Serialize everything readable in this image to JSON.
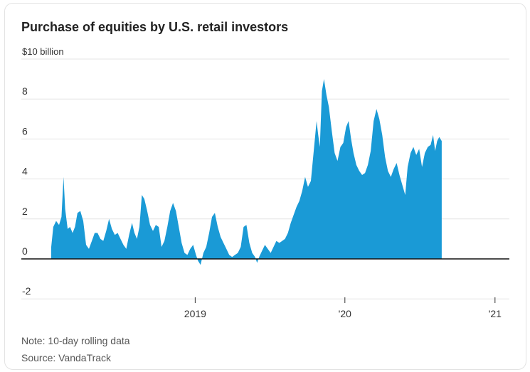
{
  "title": "Purchase of equities by U.S. retail investors",
  "note": "Note: 10-day rolling data",
  "source": "Source: VandaTrack",
  "colors": {
    "area": "#1a9ad6",
    "grid": "#e4e4e4",
    "zero_line": "#111111",
    "text": "#333333"
  },
  "chart_data": {
    "type": "area",
    "title": "Purchase of equities by U.S. retail investors",
    "unit_label": "$10 billion",
    "ylim": [
      -2,
      10
    ],
    "y_ticks": [
      {
        "value": 10,
        "label": "$10 billion"
      },
      {
        "value": 8,
        "label": "8"
      },
      {
        "value": 6,
        "label": "6"
      },
      {
        "value": 4,
        "label": "4"
      },
      {
        "value": 2,
        "label": "2"
      },
      {
        "value": 0,
        "label": "0"
      },
      {
        "value": -2,
        "label": "-2"
      }
    ],
    "xlim": [
      "2018-01-15",
      "2021-02-05"
    ],
    "x_ticks": [
      {
        "value": "2019-01-01",
        "label": "2019"
      },
      {
        "value": "2020-01-01",
        "label": "'20"
      },
      {
        "value": "2021-01-01",
        "label": "'21"
      }
    ],
    "grid": true,
    "points": [
      [
        "2018-01-15",
        0.6
      ],
      [
        "2018-01-20",
        1.6
      ],
      [
        "2018-01-27",
        1.9
      ],
      [
        "2018-02-03",
        1.7
      ],
      [
        "2018-02-09",
        2.1
      ],
      [
        "2018-02-14",
        4.1
      ],
      [
        "2018-02-18",
        2.5
      ],
      [
        "2018-02-24",
        1.5
      ],
      [
        "2018-03-02",
        1.6
      ],
      [
        "2018-03-08",
        1.3
      ],
      [
        "2018-03-14",
        1.6
      ],
      [
        "2018-03-20",
        2.3
      ],
      [
        "2018-03-27",
        2.4
      ],
      [
        "2018-04-03",
        1.9
      ],
      [
        "2018-04-10",
        0.7
      ],
      [
        "2018-04-17",
        0.5
      ],
      [
        "2018-04-24",
        0.9
      ],
      [
        "2018-05-01",
        1.3
      ],
      [
        "2018-05-08",
        1.3
      ],
      [
        "2018-05-15",
        1.0
      ],
      [
        "2018-05-22",
        0.9
      ],
      [
        "2018-05-29",
        1.4
      ],
      [
        "2018-06-05",
        2.0
      ],
      [
        "2018-06-12",
        1.5
      ],
      [
        "2018-06-19",
        1.2
      ],
      [
        "2018-06-26",
        1.3
      ],
      [
        "2018-07-03",
        1.0
      ],
      [
        "2018-07-10",
        0.7
      ],
      [
        "2018-07-17",
        0.5
      ],
      [
        "2018-07-24",
        1.2
      ],
      [
        "2018-07-31",
        1.8
      ],
      [
        "2018-08-06",
        1.3
      ],
      [
        "2018-08-12",
        1.0
      ],
      [
        "2018-08-18",
        1.6
      ],
      [
        "2018-08-24",
        3.2
      ],
      [
        "2018-08-30",
        3.0
      ],
      [
        "2018-09-06",
        2.4
      ],
      [
        "2018-09-13",
        1.7
      ],
      [
        "2018-09-20",
        1.4
      ],
      [
        "2018-09-27",
        1.7
      ],
      [
        "2018-10-04",
        1.6
      ],
      [
        "2018-10-11",
        0.6
      ],
      [
        "2018-10-18",
        0.9
      ],
      [
        "2018-10-25",
        1.6
      ],
      [
        "2018-11-01",
        2.4
      ],
      [
        "2018-11-08",
        2.8
      ],
      [
        "2018-11-15",
        2.4
      ],
      [
        "2018-11-22",
        1.6
      ],
      [
        "2018-11-29",
        0.8
      ],
      [
        "2018-12-06",
        0.3
      ],
      [
        "2018-12-13",
        0.2
      ],
      [
        "2018-12-20",
        0.5
      ],
      [
        "2018-12-27",
        0.7
      ],
      [
        "2019-01-03",
        0.2
      ],
      [
        "2019-01-08",
        -0.1
      ],
      [
        "2019-01-14",
        -0.3
      ],
      [
        "2019-01-21",
        0.3
      ],
      [
        "2019-01-28",
        0.6
      ],
      [
        "2019-02-04",
        1.3
      ],
      [
        "2019-02-11",
        2.1
      ],
      [
        "2019-02-18",
        2.3
      ],
      [
        "2019-02-25",
        1.6
      ],
      [
        "2019-03-04",
        1.1
      ],
      [
        "2019-03-11",
        0.8
      ],
      [
        "2019-03-18",
        0.5
      ],
      [
        "2019-03-25",
        0.2
      ],
      [
        "2019-04-01",
        0.1
      ],
      [
        "2019-04-08",
        0.2
      ],
      [
        "2019-04-15",
        0.3
      ],
      [
        "2019-04-22",
        0.6
      ],
      [
        "2019-04-29",
        1.6
      ],
      [
        "2019-05-06",
        1.7
      ],
      [
        "2019-05-13",
        0.8
      ],
      [
        "2019-05-20",
        0.3
      ],
      [
        "2019-05-27",
        0.1
      ],
      [
        "2019-06-01",
        -0.2
      ],
      [
        "2019-06-06",
        0.1
      ],
      [
        "2019-06-13",
        0.4
      ],
      [
        "2019-06-20",
        0.7
      ],
      [
        "2019-06-27",
        0.5
      ],
      [
        "2019-07-04",
        0.3
      ],
      [
        "2019-07-11",
        0.6
      ],
      [
        "2019-07-18",
        0.9
      ],
      [
        "2019-07-25",
        0.8
      ],
      [
        "2019-08-01",
        0.9
      ],
      [
        "2019-08-08",
        1.0
      ],
      [
        "2019-08-15",
        1.3
      ],
      [
        "2019-08-22",
        1.8
      ],
      [
        "2019-08-29",
        2.2
      ],
      [
        "2019-09-05",
        2.6
      ],
      [
        "2019-09-12",
        2.9
      ],
      [
        "2019-09-19",
        3.4
      ],
      [
        "2019-09-26",
        4.1
      ],
      [
        "2019-10-03",
        3.6
      ],
      [
        "2019-10-10",
        3.9
      ],
      [
        "2019-10-17",
        5.4
      ],
      [
        "2019-10-24",
        6.9
      ],
      [
        "2019-10-28",
        6.2
      ],
      [
        "2019-11-01",
        5.6
      ],
      [
        "2019-11-06",
        8.4
      ],
      [
        "2019-11-11",
        9.0
      ],
      [
        "2019-11-17",
        8.2
      ],
      [
        "2019-11-23",
        7.6
      ],
      [
        "2019-11-30",
        6.4
      ],
      [
        "2019-12-07",
        5.3
      ],
      [
        "2019-12-14",
        4.9
      ],
      [
        "2019-12-21",
        5.6
      ],
      [
        "2019-12-28",
        5.8
      ],
      [
        "2020-01-04",
        6.6
      ],
      [
        "2020-01-10",
        6.9
      ],
      [
        "2020-01-16",
        6.0
      ],
      [
        "2020-01-22",
        5.3
      ],
      [
        "2020-01-29",
        4.7
      ],
      [
        "2020-02-05",
        4.4
      ],
      [
        "2020-02-12",
        4.2
      ],
      [
        "2020-02-19",
        4.3
      ],
      [
        "2020-02-26",
        4.7
      ],
      [
        "2020-03-04",
        5.4
      ],
      [
        "2020-03-11",
        6.9
      ],
      [
        "2020-03-18",
        7.5
      ],
      [
        "2020-03-25",
        7.0
      ],
      [
        "2020-04-01",
        6.2
      ],
      [
        "2020-04-08",
        5.1
      ],
      [
        "2020-04-15",
        4.4
      ],
      [
        "2020-04-22",
        4.1
      ],
      [
        "2020-04-29",
        4.5
      ],
      [
        "2020-05-06",
        4.8
      ],
      [
        "2020-05-13",
        4.2
      ],
      [
        "2020-05-20",
        3.7
      ],
      [
        "2020-05-27",
        3.2
      ],
      [
        "2020-06-02",
        4.6
      ],
      [
        "2020-06-09",
        5.3
      ],
      [
        "2020-06-16",
        5.6
      ],
      [
        "2020-06-23",
        5.2
      ],
      [
        "2020-06-30",
        5.5
      ],
      [
        "2020-07-07",
        4.6
      ],
      [
        "2020-07-14",
        5.3
      ],
      [
        "2020-07-21",
        5.6
      ],
      [
        "2020-07-28",
        5.7
      ],
      [
        "2020-08-03",
        6.2
      ],
      [
        "2020-08-08",
        5.4
      ],
      [
        "2020-08-13",
        5.9
      ],
      [
        "2020-08-18",
        6.1
      ],
      [
        "2020-08-24",
        5.9
      ]
    ]
  }
}
